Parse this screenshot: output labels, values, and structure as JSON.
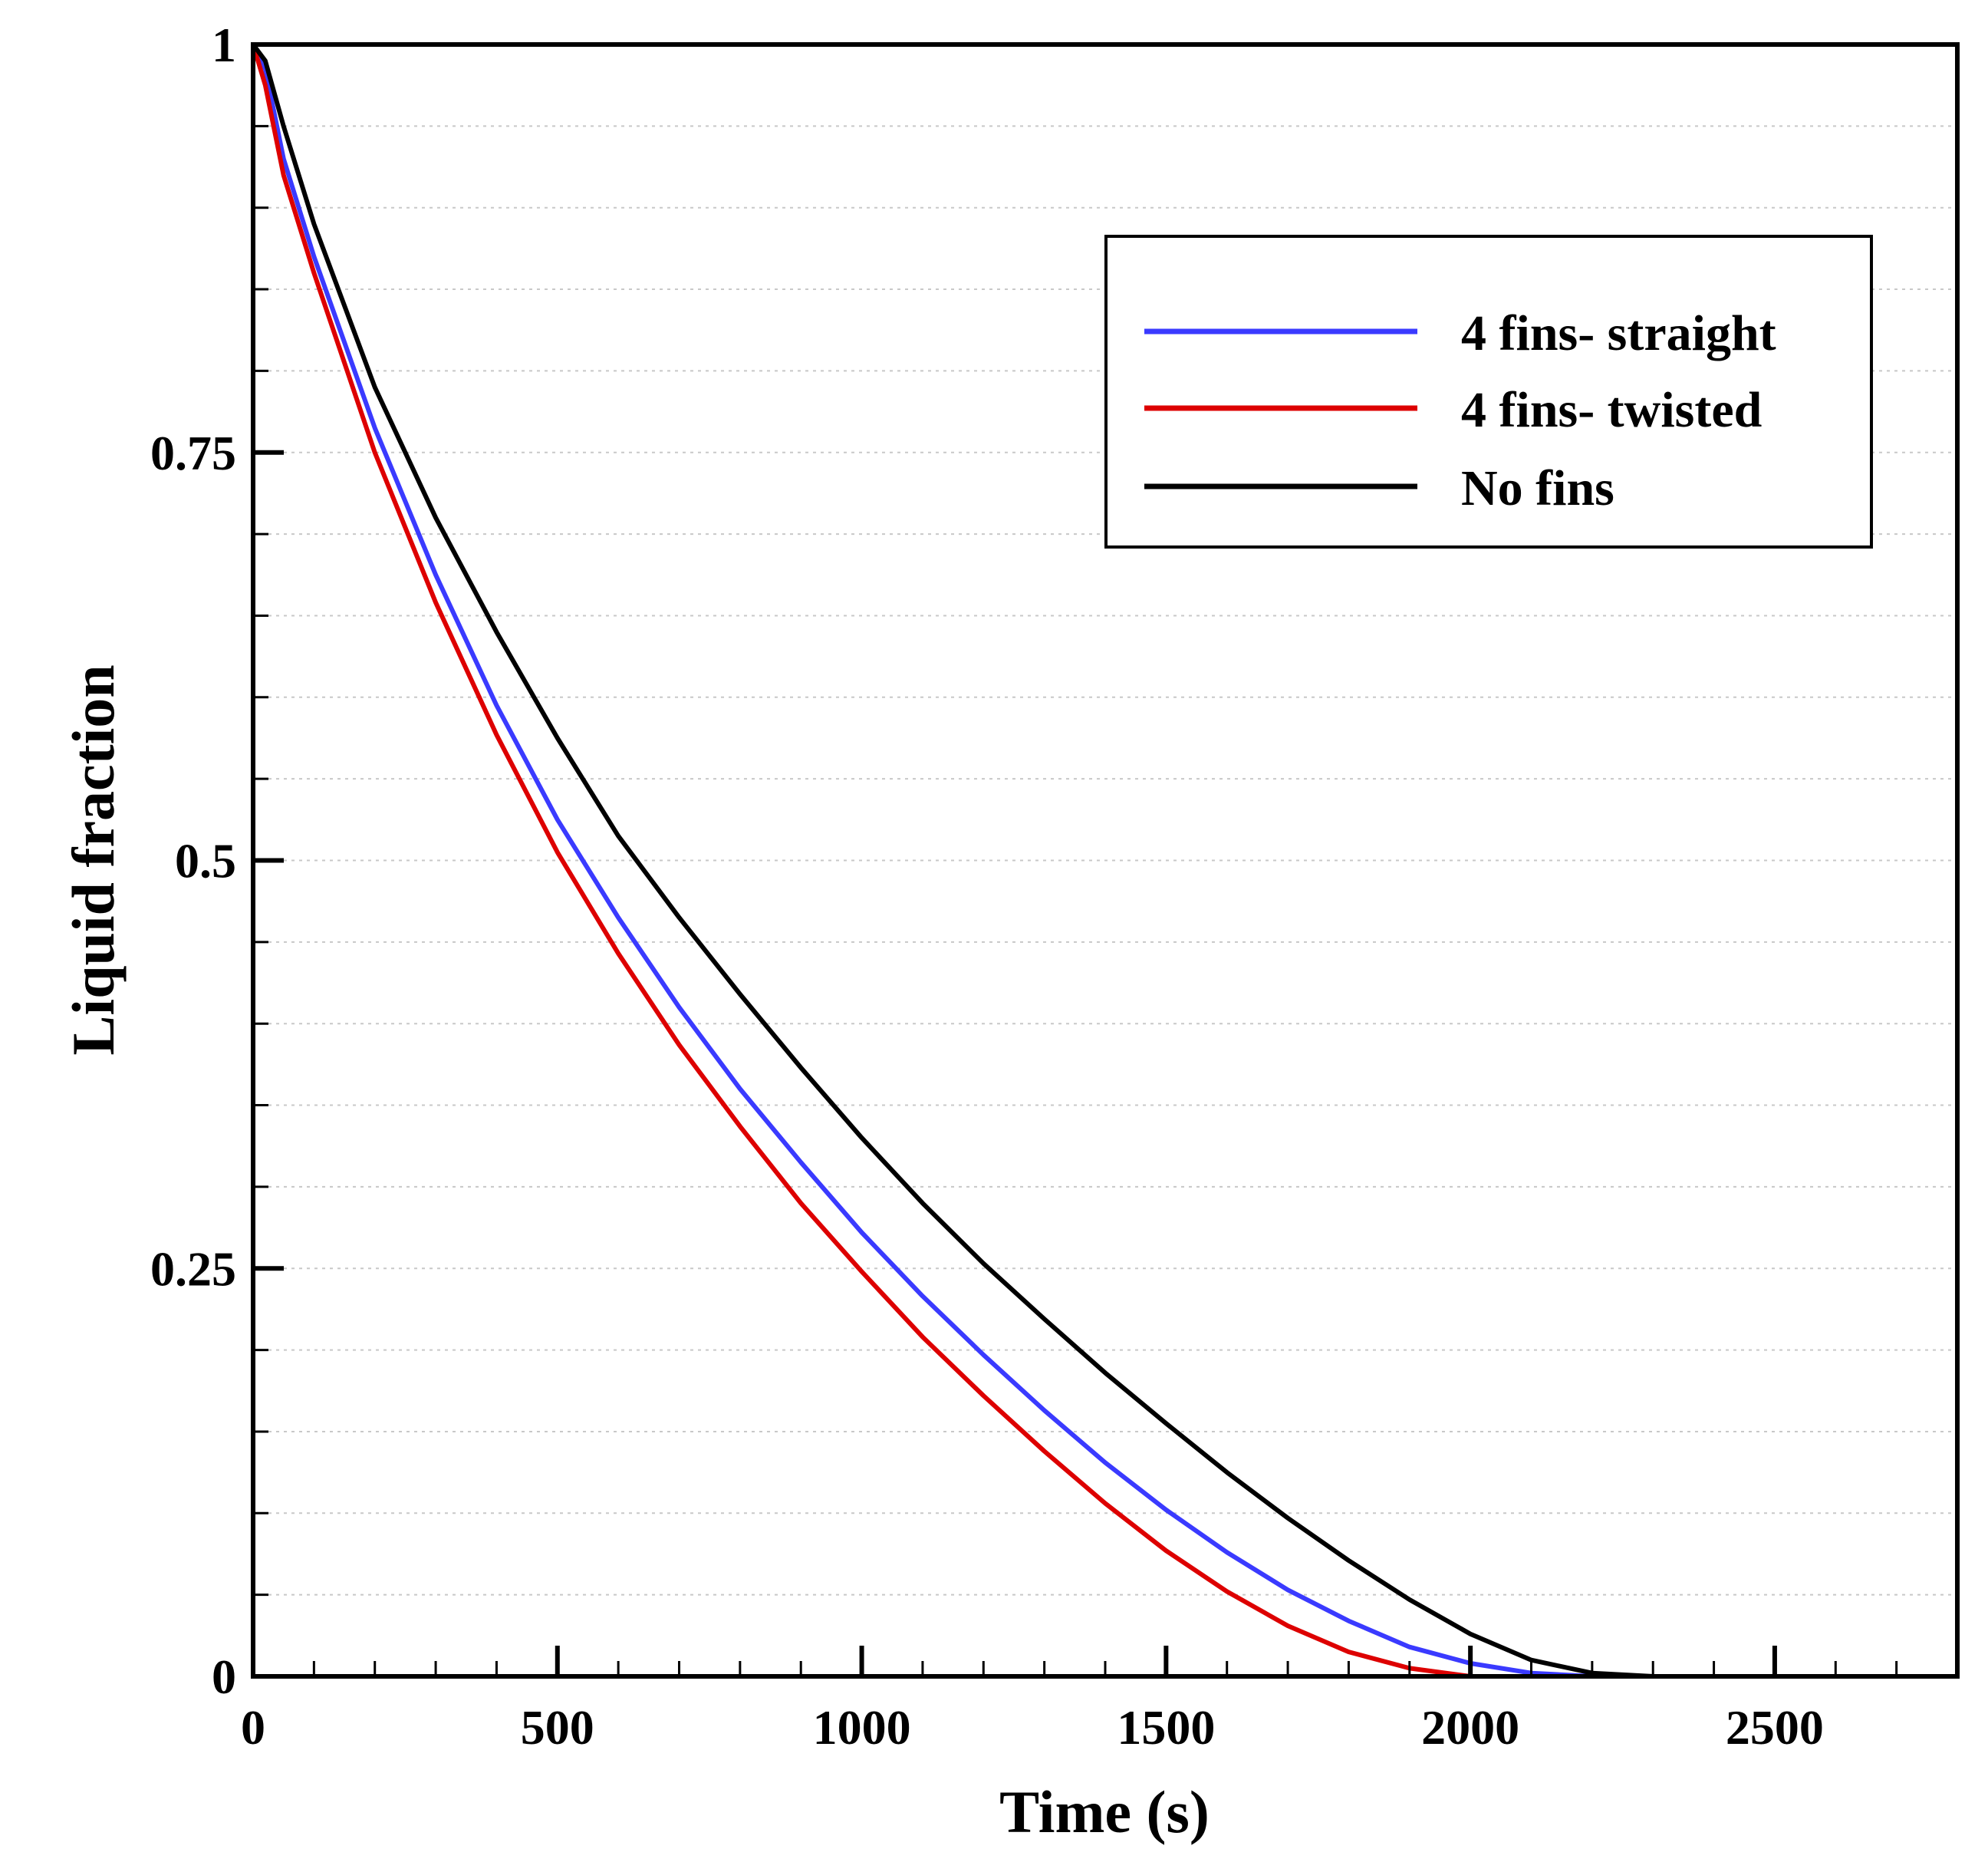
{
  "chart_data": {
    "type": "line",
    "xlabel": "Time (s)",
    "ylabel": "Liquid fraction",
    "xlim": [
      0,
      2800
    ],
    "ylim": [
      0,
      1
    ],
    "x_major_ticks": [
      0,
      500,
      1000,
      1500,
      2000,
      2500
    ],
    "x_tick_labels": [
      "0",
      "500",
      "1000",
      "1500",
      "2000",
      "2500"
    ],
    "x_minor_step": 100,
    "y_major_ticks": [
      0,
      0.25,
      0.5,
      0.75,
      1
    ],
    "y_tick_labels": [
      "0",
      "0.25",
      "0.5",
      "0.75",
      "1"
    ],
    "y_minor_step": 0.05,
    "grid": "dotted horizontal",
    "legend_position": "top-right",
    "series": [
      {
        "name": "4 fins- straight",
        "color": "#3a3aff",
        "x": [
          0,
          20,
          50,
          100,
          200,
          300,
          400,
          500,
          600,
          700,
          800,
          900,
          1000,
          1100,
          1200,
          1300,
          1400,
          1500,
          1600,
          1700,
          1800,
          1900,
          2000,
          2100,
          2200,
          2300,
          2500,
          2800
        ],
        "y": [
          1.0,
          0.985,
          0.93,
          0.87,
          0.765,
          0.675,
          0.595,
          0.525,
          0.465,
          0.41,
          0.36,
          0.315,
          0.272,
          0.233,
          0.197,
          0.163,
          0.131,
          0.102,
          0.076,
          0.053,
          0.034,
          0.018,
          0.008,
          0.002,
          0.0,
          0.0,
          0.0,
          0.0
        ]
      },
      {
        "name": "4 fins- twisted",
        "color": "#dd0000",
        "x": [
          0,
          20,
          50,
          100,
          200,
          300,
          400,
          500,
          600,
          700,
          800,
          900,
          1000,
          1100,
          1200,
          1300,
          1400,
          1500,
          1600,
          1700,
          1800,
          1900,
          2000,
          2100,
          2300,
          2500,
          2800
        ],
        "y": [
          1.0,
          0.975,
          0.92,
          0.86,
          0.75,
          0.658,
          0.577,
          0.505,
          0.443,
          0.387,
          0.337,
          0.29,
          0.248,
          0.208,
          0.172,
          0.138,
          0.106,
          0.077,
          0.052,
          0.031,
          0.015,
          0.005,
          0.0,
          0.0,
          0.0,
          0.0,
          0.0
        ]
      },
      {
        "name": "No fins",
        "color": "#000000",
        "x": [
          0,
          20,
          50,
          100,
          200,
          300,
          400,
          500,
          600,
          700,
          800,
          900,
          1000,
          1100,
          1200,
          1300,
          1400,
          1500,
          1600,
          1700,
          1800,
          1900,
          2000,
          2100,
          2200,
          2300,
          2500,
          2800
        ],
        "y": [
          1.0,
          0.99,
          0.95,
          0.89,
          0.79,
          0.71,
          0.64,
          0.575,
          0.515,
          0.465,
          0.418,
          0.373,
          0.33,
          0.29,
          0.253,
          0.219,
          0.186,
          0.155,
          0.125,
          0.097,
          0.071,
          0.047,
          0.026,
          0.01,
          0.002,
          0.0,
          0.0,
          0.0
        ]
      }
    ]
  }
}
